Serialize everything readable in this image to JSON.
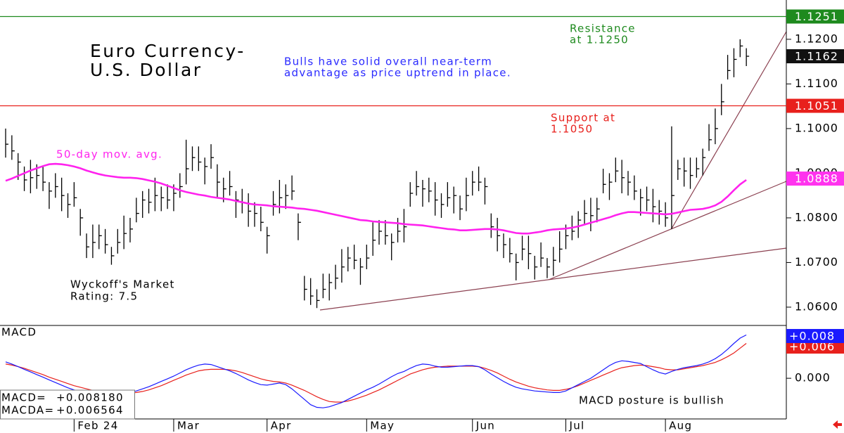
{
  "chart_data": {
    "type": "ohlc",
    "title": [
      "Euro Currency-",
      "U.S. Dollar"
    ],
    "comment": [
      "Bulls have solid overall near-term",
      "advantage as price uptrend in place."
    ],
    "resistance_note": [
      "Resistance",
      "at 1.1250"
    ],
    "support_note": [
      "Support at",
      "1.1050"
    ],
    "rating": [
      "Wyckoff's Market",
      "Rating: 7.5"
    ],
    "color": "#000000",
    "categories": [
      null,
      null,
      null,
      null,
      null,
      null,
      null,
      null,
      null,
      null,
      null,
      "Feb 24",
      null,
      null,
      null,
      null,
      null,
      null,
      null,
      null,
      null,
      null,
      null,
      null,
      null,
      null,
      null,
      "Mar",
      null,
      null,
      null,
      null,
      null,
      null,
      null,
      null,
      null,
      null,
      null,
      null,
      null,
      null,
      "Apr",
      null,
      null,
      null,
      null,
      null,
      null,
      null,
      null,
      null,
      null,
      null,
      null,
      null,
      null,
      null,
      "May",
      null,
      null,
      null,
      null,
      null,
      null,
      null,
      null,
      null,
      null,
      null,
      null,
      null,
      null,
      null,
      null,
      "Jun",
      null,
      null,
      null,
      null,
      null,
      null,
      null,
      null,
      null,
      null,
      null,
      null,
      null,
      null,
      "Jul",
      null,
      null,
      null,
      null,
      null,
      null,
      null,
      null,
      null,
      null,
      null,
      null,
      null,
      null,
      null,
      "Aug",
      null,
      null,
      null,
      null,
      null,
      null,
      null,
      null,
      null,
      null,
      null,
      null,
      null
    ],
    "high": [
      1.1,
      1.0985,
      1.0945,
      1.0915,
      1.093,
      1.092,
      1.0915,
      1.088,
      1.09,
      1.089,
      1.0855,
      1.088,
      1.082,
      1.0765,
      1.0785,
      1.0785,
      1.0775,
      1.0735,
      1.0775,
      1.0805,
      1.08,
      1.0845,
      1.086,
      1.0865,
      1.089,
      1.087,
      1.0875,
      1.0875,
      1.09,
      1.0975,
      1.096,
      1.096,
      1.0935,
      1.0965,
      1.092,
      1.089,
      1.0905,
      1.086,
      1.0865,
      1.0855,
      1.0835,
      1.0825,
      1.078,
      1.086,
      1.0885,
      1.0875,
      1.0895,
      1.081,
      1.067,
      1.0665,
      1.064,
      1.0675,
      1.0675,
      1.0695,
      1.073,
      1.0735,
      1.074,
      1.071,
      1.074,
      1.079,
      1.0795,
      1.0795,
      1.0765,
      1.08,
      1.082,
      1.088,
      1.0905,
      1.0885,
      1.089,
      1.088,
      1.0855,
      1.088,
      1.087,
      1.085,
      1.089,
      1.0905,
      1.0915,
      1.089,
      1.081,
      1.08,
      1.0765,
      1.0755,
      1.072,
      1.076,
      1.076,
      1.0715,
      1.0745,
      1.071,
      1.0735,
      1.077,
      1.0785,
      1.0805,
      1.0815,
      1.084,
      1.0845,
      1.0845,
      1.091,
      1.09,
      1.0935,
      1.093,
      1.0905,
      1.0895,
      1.0865,
      1.087,
      1.0865,
      1.084,
      1.0835,
      1.1005,
      1.093,
      1.0935,
      1.0935,
      1.0935,
      1.0955,
      1.101,
      1.1045,
      1.11,
      1.1165,
      1.118,
      1.12,
      1.118
    ],
    "low": [
      1.0935,
      1.093,
      1.0885,
      1.086,
      1.0855,
      1.0865,
      1.086,
      1.082,
      1.0845,
      1.0815,
      1.08,
      1.0825,
      1.076,
      1.071,
      1.071,
      1.073,
      1.072,
      1.0695,
      1.072,
      1.073,
      1.0745,
      1.079,
      1.08,
      1.081,
      1.0815,
      1.0815,
      1.082,
      1.0815,
      1.0845,
      1.0875,
      1.0905,
      1.0905,
      1.0875,
      1.091,
      1.0845,
      1.0835,
      1.085,
      1.08,
      1.081,
      1.078,
      1.078,
      1.077,
      1.072,
      1.0805,
      1.081,
      1.082,
      1.084,
      1.075,
      1.0615,
      1.0605,
      1.0598,
      1.062,
      1.0615,
      1.064,
      1.0655,
      1.068,
      1.0685,
      1.065,
      1.0685,
      1.0715,
      1.074,
      1.074,
      1.0705,
      1.0745,
      1.0745,
      1.0825,
      1.085,
      1.0825,
      1.0835,
      1.0805,
      1.08,
      1.0825,
      1.081,
      1.0795,
      1.0815,
      1.085,
      1.086,
      1.083,
      1.0755,
      1.0725,
      1.071,
      1.07,
      1.066,
      1.0705,
      1.0685,
      1.0662,
      1.069,
      1.0665,
      1.067,
      1.07,
      1.073,
      1.075,
      1.0755,
      1.0785,
      1.077,
      1.079,
      1.0855,
      1.084,
      1.088,
      1.0855,
      1.085,
      1.084,
      1.0805,
      1.0815,
      1.079,
      1.0785,
      1.078,
      1.0775,
      1.0885,
      1.087,
      1.0865,
      1.089,
      1.0895,
      1.095,
      1.0965,
      1.103,
      1.111,
      1.1115,
      1.116,
      1.114
    ],
    "close": [
      1.0965,
      1.095,
      1.0925,
      1.0885,
      1.089,
      1.0895,
      1.088,
      1.086,
      1.087,
      1.085,
      1.083,
      1.0845,
      1.08,
      1.0735,
      1.0745,
      1.076,
      1.074,
      1.0715,
      1.0745,
      1.0765,
      1.0775,
      1.081,
      1.084,
      1.0835,
      1.085,
      1.0845,
      1.084,
      1.0855,
      1.087,
      1.091,
      1.0935,
      1.0925,
      1.0915,
      1.0935,
      1.088,
      1.0865,
      1.087,
      1.084,
      1.0835,
      1.0815,
      1.081,
      1.079,
      1.076,
      1.083,
      1.0845,
      1.085,
      1.086,
      1.079,
      1.064,
      1.0625,
      1.0615,
      1.064,
      1.0655,
      1.0665,
      1.069,
      1.071,
      1.0705,
      1.069,
      1.071,
      1.075,
      1.077,
      1.076,
      1.0745,
      1.077,
      1.078,
      1.0855,
      1.087,
      1.0865,
      1.086,
      1.084,
      1.083,
      1.0845,
      1.085,
      1.082,
      1.085,
      1.088,
      1.088,
      1.087,
      1.078,
      1.076,
      1.074,
      1.072,
      1.07,
      1.073,
      1.072,
      1.069,
      1.071,
      1.069,
      1.0705,
      1.073,
      1.076,
      1.077,
      1.0795,
      1.081,
      1.0805,
      1.082,
      1.0875,
      1.088,
      1.0905,
      1.089,
      1.088,
      1.086,
      1.0845,
      1.084,
      1.0825,
      1.0815,
      1.08,
      1.085,
      1.091,
      1.0905,
      1.0895,
      1.091,
      1.0935,
      1.0975,
      1.1,
      1.106,
      1.113,
      1.1155,
      1.1185,
      1.1162
    ],
    "ma": {
      "name": "50-day mov. avg.",
      "color": "#ff22ee",
      "values": [
        1.0883,
        1.0888,
        1.0894,
        1.09,
        1.0906,
        1.0911,
        1.0916,
        1.092,
        1.0921,
        1.092,
        1.0918,
        1.0915,
        1.0911,
        1.0906,
        1.0902,
        1.0898,
        1.0895,
        1.0893,
        1.0891,
        1.089,
        1.089,
        1.0889,
        1.0887,
        1.0884,
        1.0881,
        1.0877,
        1.0872,
        1.0867,
        1.0862,
        1.0858,
        1.0855,
        1.0852,
        1.085,
        1.0847,
        1.0845,
        1.0843,
        1.0841,
        1.0838,
        1.0835,
        1.0832,
        1.083,
        1.0829,
        1.0828,
        1.0826,
        1.0825,
        1.0824,
        1.0823,
        1.0821,
        1.082,
        1.0818,
        1.0816,
        1.0813,
        1.081,
        1.0807,
        1.0804,
        1.0801,
        1.0798,
        1.0795,
        1.0794,
        1.0792,
        1.0791,
        1.079,
        1.0789,
        1.0788,
        1.0786,
        1.0785,
        1.0784,
        1.0783,
        1.0781,
        1.0779,
        1.0777,
        1.0775,
        1.0774,
        1.0772,
        1.0772,
        1.0773,
        1.0774,
        1.0775,
        1.0775,
        1.0774,
        1.0772,
        1.0769,
        1.0766,
        1.0765,
        1.0765,
        1.0767,
        1.0769,
        1.0772,
        1.0774,
        1.0775,
        1.0776,
        1.0778,
        1.0781,
        1.0785,
        1.0789,
        1.0793,
        1.0797,
        1.0801,
        1.0806,
        1.081,
        1.0813,
        1.0813,
        1.0812,
        1.0811,
        1.081,
        1.0809,
        1.0808,
        1.0809,
        1.0812,
        1.0815,
        1.0818,
        1.0819,
        1.082,
        1.0823,
        1.0828,
        1.0836,
        1.0848,
        1.0862,
        1.0875,
        1.0885
      ]
    },
    "ylim": [
      1.0559,
      1.1288
    ],
    "yticks": [
      {
        "value": 1.06,
        "label": "1.0600"
      },
      {
        "value": 1.07,
        "label": "1.0700"
      },
      {
        "value": 1.08,
        "label": "1.0800"
      },
      {
        "value": 1.09,
        "label": "1.0900"
      },
      {
        "value": 1.1,
        "label": "1.1000"
      },
      {
        "value": 1.11,
        "label": "1.1100"
      },
      {
        "value": 1.12,
        "label": "1.1200"
      }
    ],
    "tags": [
      {
        "value": 1.1251,
        "color": "#1e8a1e",
        "line": true
      },
      {
        "value": 1.1051,
        "color": "#e8201c",
        "line": true
      },
      {
        "value": 1.1162,
        "color": "#111111",
        "line": false
      },
      {
        "value": 1.0888,
        "color": "#ff33ee",
        "line": false
      }
    ],
    "macd_title": "MACD",
    "macd_comment": "MACD posture is bullish",
    "readouts": [
      [
        "MACD=",
        "+0.008180"
      ],
      [
        "MACDA=",
        "+0.006564"
      ]
    ],
    "y2lim": [
      -0.0077,
      0.01
    ],
    "y2ticks": [
      {
        "value": 0,
        "label": "0.000"
      }
    ],
    "y2tags": [
      {
        "value": 0.006,
        "label": "+0.006",
        "color": "#e8201c"
      },
      {
        "value": 0.008,
        "label": "+0.008",
        "color": "#1a1aff"
      }
    ],
    "series": [
      {
        "name": "MACD",
        "color": "#1a1aff",
        "axis": "y2",
        "values": [
          0.0031,
          0.0027,
          0.0022,
          0.0017,
          0.0012,
          0.0007,
          0.0002,
          -0.0003,
          -0.0008,
          -0.0013,
          -0.0018,
          -0.0022,
          -0.0026,
          -0.0029,
          -0.0031,
          -0.0033,
          -0.0035,
          -0.0036,
          -0.0034,
          -0.0031,
          -0.0027,
          -0.0024,
          -0.002,
          -0.0016,
          -0.0011,
          -0.0006,
          -0.0001,
          0.0004,
          0.001,
          0.0016,
          0.0021,
          0.0025,
          0.0027,
          0.0026,
          0.0022,
          0.0018,
          0.0014,
          0.0009,
          0.0003,
          -0.0003,
          -0.0008,
          -0.0012,
          -0.0013,
          -0.0011,
          -0.0009,
          -0.0012,
          -0.002,
          -0.003,
          -0.004,
          -0.005,
          -0.0055,
          -0.0056,
          -0.0054,
          -0.005,
          -0.0046,
          -0.004,
          -0.0034,
          -0.0028,
          -0.0022,
          -0.0017,
          -0.0011,
          -0.0004,
          0.0003,
          0.0009,
          0.0013,
          0.0019,
          0.0024,
          0.0027,
          0.0026,
          0.0023,
          0.0021,
          0.0021,
          0.0022,
          0.0023,
          0.0024,
          0.0024,
          0.0022,
          0.0016,
          0.0008,
          0.0001,
          -0.0006,
          -0.0012,
          -0.0017,
          -0.002,
          -0.0022,
          -0.0024,
          -0.0025,
          -0.0026,
          -0.0027,
          -0.0027,
          -0.0024,
          -0.0018,
          -0.0012,
          -0.0006,
          0.0,
          0.0008,
          0.0016,
          0.0024,
          0.003,
          0.0033,
          0.0032,
          0.003,
          0.0028,
          0.0022,
          0.0016,
          0.0011,
          0.0008,
          0.0013,
          0.0017,
          0.002,
          0.0022,
          0.0024,
          0.0027,
          0.0031,
          0.0037,
          0.0045,
          0.0055,
          0.0066,
          0.0076,
          0.0082
        ]
      },
      {
        "name": "MACDA",
        "color": "#e8201c",
        "axis": "y2",
        "values": [
          0.0027,
          0.0025,
          0.0022,
          0.0019,
          0.0015,
          0.0011,
          0.0007,
          0.0002,
          -0.0002,
          -0.0006,
          -0.001,
          -0.0014,
          -0.0017,
          -0.002,
          -0.0023,
          -0.0025,
          -0.0027,
          -0.0028,
          -0.0029,
          -0.0029,
          -0.0028,
          -0.0027,
          -0.0025,
          -0.0022,
          -0.0018,
          -0.0014,
          -0.0009,
          -0.0004,
          0.0001,
          0.0006,
          0.001,
          0.0014,
          0.0016,
          0.0017,
          0.0017,
          0.0017,
          0.0016,
          0.0014,
          0.0011,
          0.0007,
          0.0003,
          -0.0001,
          -0.0004,
          -0.0006,
          -0.0007,
          -0.0009,
          -0.0013,
          -0.0018,
          -0.0023,
          -0.0029,
          -0.0035,
          -0.004,
          -0.0044,
          -0.0045,
          -0.0045,
          -0.0043,
          -0.004,
          -0.0036,
          -0.0032,
          -0.0027,
          -0.0022,
          -0.0016,
          -0.001,
          -0.0004,
          0.0002,
          0.0008,
          0.0012,
          0.0016,
          0.0019,
          0.0021,
          0.0022,
          0.0023,
          0.0023,
          0.0023,
          0.0023,
          0.0023,
          0.0022,
          0.0019,
          0.0015,
          0.001,
          0.0004,
          -0.0002,
          -0.0007,
          -0.0011,
          -0.0015,
          -0.0018,
          -0.002,
          -0.0022,
          -0.0023,
          -0.0023,
          -0.0021,
          -0.0018,
          -0.0014,
          -0.0009,
          -0.0004,
          0.0001,
          0.0006,
          0.0011,
          0.0016,
          0.002,
          0.0022,
          0.0024,
          0.0025,
          0.0024,
          0.0022,
          0.002,
          0.0017,
          0.0016,
          0.0016,
          0.0018,
          0.002,
          0.0022,
          0.0024,
          0.0027,
          0.003,
          0.0035,
          0.0041,
          0.0048,
          0.0057,
          0.0066
        ]
      }
    ]
  }
}
